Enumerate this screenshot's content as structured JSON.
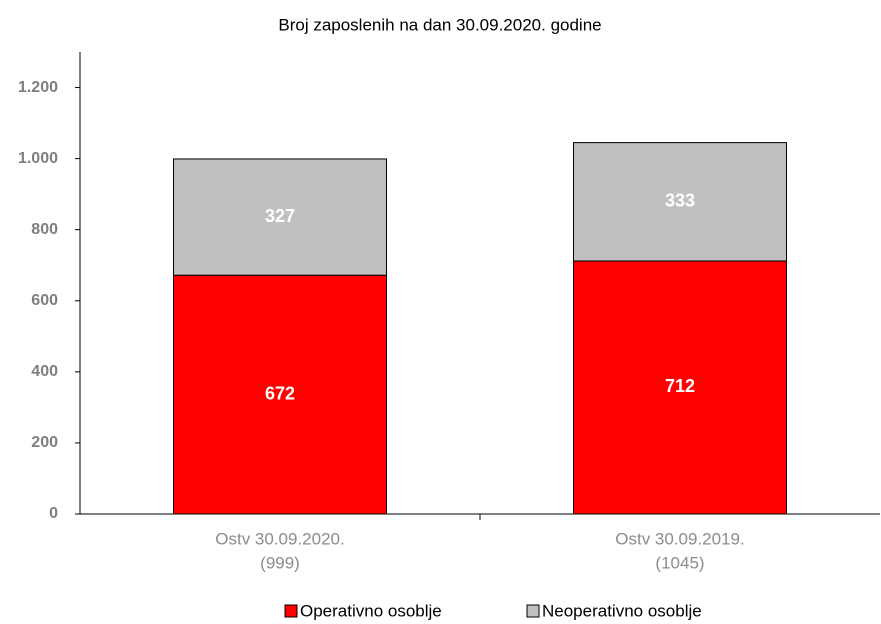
{
  "chart_data": {
    "type": "stacked_bar",
    "title": "Broj zaposlenih na dan 30.09.2020. godine",
    "categories": [
      [
        "Ostv 30.09.2020.",
        "(999)"
      ],
      [
        "Ostv 30.09.2019.",
        "(1045)"
      ]
    ],
    "series": [
      {
        "name": "Operativno osoblje",
        "color": "#ff0000",
        "values": [
          672,
          712
        ]
      },
      {
        "name": "Neoperativno osoblje",
        "color": "#c0c0c0",
        "values": [
          327,
          333
        ]
      }
    ],
    "ylim": [
      0,
      1300
    ],
    "yticks": [
      0,
      200,
      400,
      600,
      800,
      {
        "value": 1000,
        "label": "1.000"
      },
      {
        "value": 1200,
        "label": "1.200"
      }
    ],
    "legend": "bottom"
  }
}
